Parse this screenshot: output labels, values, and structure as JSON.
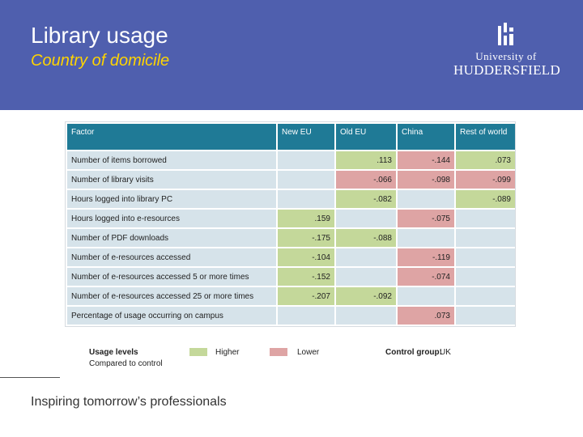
{
  "slide": {
    "title": "Library usage",
    "subtitle": "Country of domicile",
    "footer": "Inspiring tomorrow’s professionals"
  },
  "logo": {
    "line1": "University of",
    "line2": "HUDDERSFIELD"
  },
  "table": {
    "headers": [
      "Factor",
      "New EU",
      "Old EU",
      "China",
      "Rest of world"
    ],
    "rows": [
      {
        "factor": "Number of items borrowed",
        "cells": [
          {
            "v": "",
            "s": "none"
          },
          {
            "v": ".113",
            "s": "higher"
          },
          {
            "v": "-.144",
            "s": "lower"
          },
          {
            "v": ".073",
            "s": "higher"
          }
        ]
      },
      {
        "factor": "Number of library visits",
        "cells": [
          {
            "v": "",
            "s": "none"
          },
          {
            "v": "-.066",
            "s": "lower"
          },
          {
            "v": "-.098",
            "s": "lower"
          },
          {
            "v": "-.099",
            "s": "lower"
          }
        ]
      },
      {
        "factor": "Hours logged into library PC",
        "cells": [
          {
            "v": "",
            "s": "none"
          },
          {
            "v": "-.082",
            "s": "higher"
          },
          {
            "v": "",
            "s": "none"
          },
          {
            "v": "-.089",
            "s": "higher"
          }
        ]
      },
      {
        "factor": "Hours logged into e-resources",
        "cells": [
          {
            "v": ".159",
            "s": "higher"
          },
          {
            "v": "",
            "s": "none"
          },
          {
            "v": "-.075",
            "s": "lower"
          },
          {
            "v": "",
            "s": "none"
          }
        ]
      },
      {
        "factor": "Number of PDF downloads",
        "cells": [
          {
            "v": "-.175",
            "s": "higher"
          },
          {
            "v": "-.088",
            "s": "higher"
          },
          {
            "v": "",
            "s": "none"
          },
          {
            "v": "",
            "s": "none"
          }
        ]
      },
      {
        "factor": "Number of e-resources accessed",
        "cells": [
          {
            "v": "-.104",
            "s": "higher"
          },
          {
            "v": "",
            "s": "none"
          },
          {
            "v": "-.119",
            "s": "lower"
          },
          {
            "v": "",
            "s": "none"
          }
        ]
      },
      {
        "factor": "Number of e-resources accessed 5 or more times",
        "cells": [
          {
            "v": "-.152",
            "s": "higher"
          },
          {
            "v": "",
            "s": "none"
          },
          {
            "v": "-.074",
            "s": "lower"
          },
          {
            "v": "",
            "s": "none"
          }
        ]
      },
      {
        "factor": "Number of e-resources accessed 25 or more times",
        "cells": [
          {
            "v": "-.207",
            "s": "higher"
          },
          {
            "v": "-.092",
            "s": "higher"
          },
          {
            "v": "",
            "s": "none"
          },
          {
            "v": "",
            "s": "none"
          }
        ]
      },
      {
        "factor": "Percentage of usage occurring on campus",
        "cells": [
          {
            "v": "",
            "s": "none"
          },
          {
            "v": "",
            "s": "none"
          },
          {
            "v": ".073",
            "s": "lower"
          },
          {
            "v": "",
            "s": "none"
          }
        ]
      }
    ]
  },
  "legend": {
    "title": "Usage levels",
    "subtitle": "Compared to control",
    "higher": "Higher",
    "lower": "Lower",
    "control_label": "Control group:",
    "control_value": "UK"
  },
  "colors": {
    "header_bg": "#4f5fae",
    "subtitle": "#ffd400",
    "table_header": "#1f7a96",
    "cell": "#d6e3ea",
    "higher": "#c4d89a",
    "lower": "#dea4a4"
  }
}
